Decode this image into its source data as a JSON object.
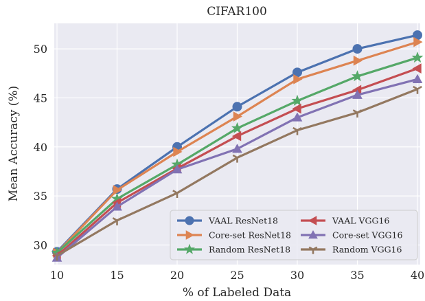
{
  "chart_data": {
    "type": "line",
    "title": "CIFAR100",
    "xlabel": "% of Labeled Data",
    "ylabel": "Mean Accuracy (%)",
    "x": [
      10,
      15,
      20,
      25,
      30,
      35,
      40
    ],
    "xlim": [
      10,
      40
    ],
    "ylim": [
      28.0,
      52.6
    ],
    "xticks": [
      "10",
      "15",
      "20",
      "25",
      "30",
      "35",
      "40"
    ],
    "yticks": [
      "30",
      "35",
      "40",
      "45",
      "50"
    ],
    "grid": true,
    "legend_position": "lower-right",
    "series": [
      {
        "name": "VAAL ResNet18",
        "color": "#4c72b0",
        "marker": "circle",
        "values": [
          29.3,
          35.7,
          40.0,
          44.1,
          47.6,
          50.0,
          51.4
        ]
      },
      {
        "name": "Core-set ResNet18",
        "color": "#dd8452",
        "marker": "triangle-right",
        "values": [
          29.2,
          35.6,
          39.5,
          43.1,
          46.9,
          48.8,
          50.7
        ]
      },
      {
        "name": "Random ResNet18",
        "color": "#55a868",
        "marker": "star",
        "values": [
          29.2,
          34.7,
          38.2,
          41.9,
          44.7,
          47.2,
          49.1
        ]
      },
      {
        "name": "VAAL VGG16",
        "color": "#c44e52",
        "marker": "triangle-left",
        "values": [
          28.9,
          34.3,
          37.8,
          41.1,
          43.9,
          45.8,
          48.0
        ]
      },
      {
        "name": "Core-set VGG16",
        "color": "#8172b3",
        "marker": "triangle-up",
        "values": [
          28.7,
          33.9,
          37.7,
          39.8,
          43.0,
          45.3,
          46.9
        ]
      },
      {
        "name": "Random VGG16",
        "color": "#937860",
        "marker": "tri-down",
        "values": [
          28.9,
          32.5,
          35.3,
          38.9,
          41.7,
          43.5,
          45.9
        ]
      }
    ]
  }
}
